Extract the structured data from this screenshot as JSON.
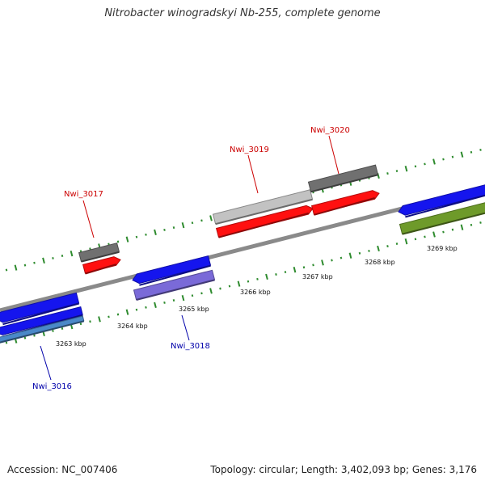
{
  "title": "Nitrobacter winogradskyi Nb-255, complete genome",
  "footer": {
    "accession": "Accession: NC_007406",
    "summary": "Topology: circular; Length: 3,402,093 bp; Genes: 3,176"
  },
  "colors": {
    "backbone": "#8a8a8a",
    "tick": "#2e8b2e",
    "forward_cds": "#ff1010",
    "forward_gene": "#707070",
    "reverse_cds": "#1515ee",
    "reverse_gene_purple": "#7a6ad8",
    "reverse_gene_teal": "#4a88c8",
    "gene_olive": "#6e9a2a",
    "forward_label": "#cc0000",
    "reverse_label": "#0000aa"
  },
  "ruler": {
    "unit": "kbp",
    "labels": [
      "3263 kbp",
      "3264 kbp",
      "3265 kbp",
      "3266 kbp",
      "3267 kbp",
      "3268 kbp",
      "3269 kbp"
    ]
  },
  "genes": [
    {
      "label": "Nwi_3016",
      "strand": "reverse"
    },
    {
      "label": "Nwi_3017",
      "strand": "forward"
    },
    {
      "label": "Nwi_3018",
      "strand": "reverse"
    },
    {
      "label": "Nwi_3019",
      "strand": "forward"
    },
    {
      "label": "Nwi_3020",
      "strand": "forward"
    }
  ]
}
